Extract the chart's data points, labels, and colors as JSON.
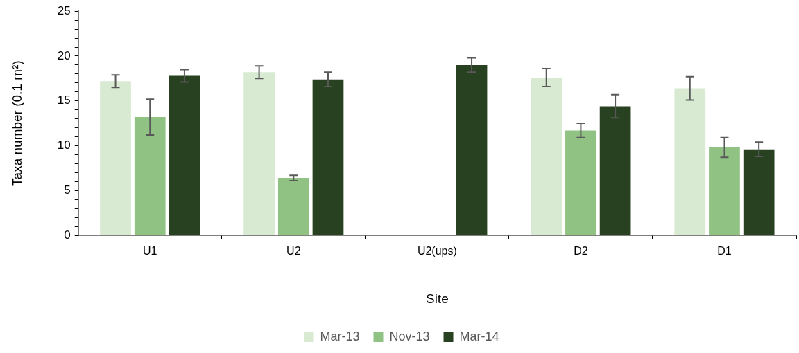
{
  "chart_data": {
    "type": "bar",
    "xlabel": "Site",
    "ylabel": "Taxa number (0.1 m²)",
    "categories": [
      "U1",
      "U2",
      "U2(ups)",
      "D2",
      "D1"
    ],
    "series": [
      {
        "name": "Mar-13",
        "color": "#d9ead3",
        "values": [
          17.2,
          18.2,
          null,
          17.6,
          16.4
        ],
        "errors": [
          0.7,
          0.7,
          null,
          1.0,
          1.3
        ]
      },
      {
        "name": "Nov-13",
        "color": "#8fc283",
        "values": [
          13.2,
          6.4,
          null,
          11.7,
          9.8
        ],
        "errors": [
          2.0,
          0.3,
          null,
          0.8,
          1.1
        ]
      },
      {
        "name": "Mar-14",
        "color": "#284221",
        "values": [
          17.8,
          17.4,
          19.0,
          14.4,
          9.6
        ],
        "errors": [
          0.7,
          0.8,
          0.8,
          1.3,
          0.8
        ]
      }
    ],
    "ylim": [
      0,
      25
    ],
    "yticks": [
      0,
      {
        "value": 1,
        "label": null
      },
      {
        "value": 2,
        "label": null
      },
      {
        "value": 3,
        "label": null
      },
      {
        "value": 4,
        "label": null
      },
      5,
      {
        "value": 6,
        "label": null
      },
      {
        "value": 7,
        "label": null
      },
      {
        "value": 8,
        "label": null
      },
      {
        "value": 9,
        "label": null
      },
      10,
      {
        "value": 11,
        "label": null
      },
      {
        "value": 12,
        "label": null
      },
      {
        "value": 13,
        "label": null
      },
      {
        "value": 14,
        "label": null
      },
      15,
      {
        "value": 16,
        "label": null
      },
      {
        "value": 17,
        "label": null
      },
      {
        "value": 18,
        "label": null
      },
      {
        "value": 19,
        "label": null
      },
      20,
      {
        "value": 21,
        "label": null
      },
      {
        "value": 22,
        "label": null
      },
      {
        "value": 23,
        "label": null
      },
      {
        "value": 24,
        "label": null
      },
      25
    ],
    "grid": false,
    "legend": "bottom"
  }
}
